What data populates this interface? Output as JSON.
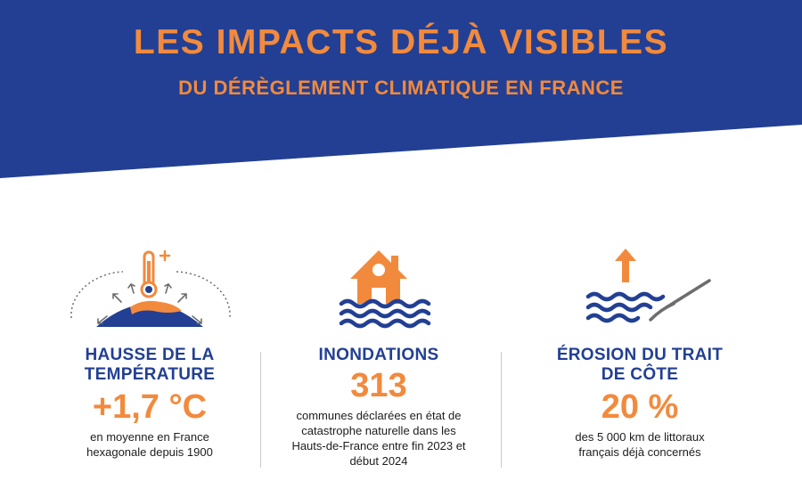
{
  "colors": {
    "navy": "#223f93",
    "orange": "#f28a3d",
    "white": "#ffffff",
    "gray_icon": "#6d6d6d"
  },
  "header": {
    "title": "LES IMPACTS DÉJÀ VISIBLES",
    "subtitle": "DU DÉRÈGLEMENT CLIMATIQUE EN FRANCE"
  },
  "impacts": [
    {
      "icon": "thermometer-globe-icon",
      "heading_line1": "HAUSSE DE LA",
      "heading_line2": "TEMPÉRATURE",
      "value": "+1,7 °C",
      "desc_line1": "en moyenne en France",
      "desc_line2": "hexagonale depuis 1900"
    },
    {
      "icon": "flooded-house-icon",
      "heading_line1": "INONDATIONS",
      "value": "313",
      "desc_line1": "communes déclarées en état de",
      "desc_line2": "catastrophe naturelle dans les",
      "desc_line3": "Hauts-de-France entre fin 2023 et",
      "desc_line4": "début 2024"
    },
    {
      "icon": "coast-erosion-icon",
      "heading_line1": "ÉROSION DU TRAIT",
      "heading_line2": "DE CÔTE",
      "value": "20 %",
      "desc_line1": "des 5 000 km de littoraux",
      "desc_line2": "français déjà concernés"
    }
  ]
}
